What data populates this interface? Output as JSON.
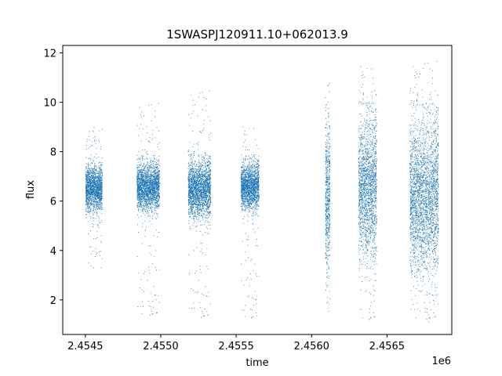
{
  "chart_data": {
    "type": "scatter",
    "title": "1SWASPJ120911.10+062013.9",
    "xlabel": "time",
    "ylabel": "flux",
    "x_offset_label": "1e6",
    "xlim": [
      2.45435,
      2.45693
    ],
    "ylim": [
      0.6,
      12.3
    ],
    "x_ticks": [
      2.4545,
      2.455,
      2.4555,
      2.456,
      2.4565
    ],
    "x_tick_labels": [
      "2.4545",
      "2.4550",
      "2.4555",
      "2.4560",
      "2.4565"
    ],
    "y_ticks": [
      2,
      4,
      6,
      8,
      10,
      12
    ],
    "y_tick_labels": [
      "2",
      "4",
      "6",
      "8",
      "10",
      "12"
    ],
    "grid": false,
    "marker_color": "#1f77b4",
    "series": [
      {
        "clusters": [
          {
            "x_range": [
              2.4545,
              2.45461
            ],
            "center": 6.5,
            "spread": 0.45,
            "min": 3.3,
            "max": 9.0
          },
          {
            "x_range": [
              2.45484,
              2.45499
            ],
            "center": 6.6,
            "spread": 0.45,
            "min": 1.3,
            "max": 10.0
          },
          {
            "x_range": [
              2.45518,
              2.45533
            ],
            "center": 6.5,
            "spread": 0.55,
            "min": 1.2,
            "max": 10.5
          },
          {
            "x_range": [
              2.45553,
              2.45565
            ],
            "center": 6.6,
            "spread": 0.45,
            "min": 1.2,
            "max": 9.2
          },
          {
            "x_range": [
              2.45609,
              2.45612
            ],
            "center": 6.3,
            "spread": 1.4,
            "min": 1.4,
            "max": 10.8
          },
          {
            "x_range": [
              2.45631,
              2.45643
            ],
            "center": 6.5,
            "spread": 1.4,
            "min": 1.1,
            "max": 11.7
          },
          {
            "x_range": [
              2.45665,
              2.45684
            ],
            "center": 6.2,
            "spread": 1.5,
            "min": 1.1,
            "max": 11.7
          }
        ]
      }
    ]
  }
}
